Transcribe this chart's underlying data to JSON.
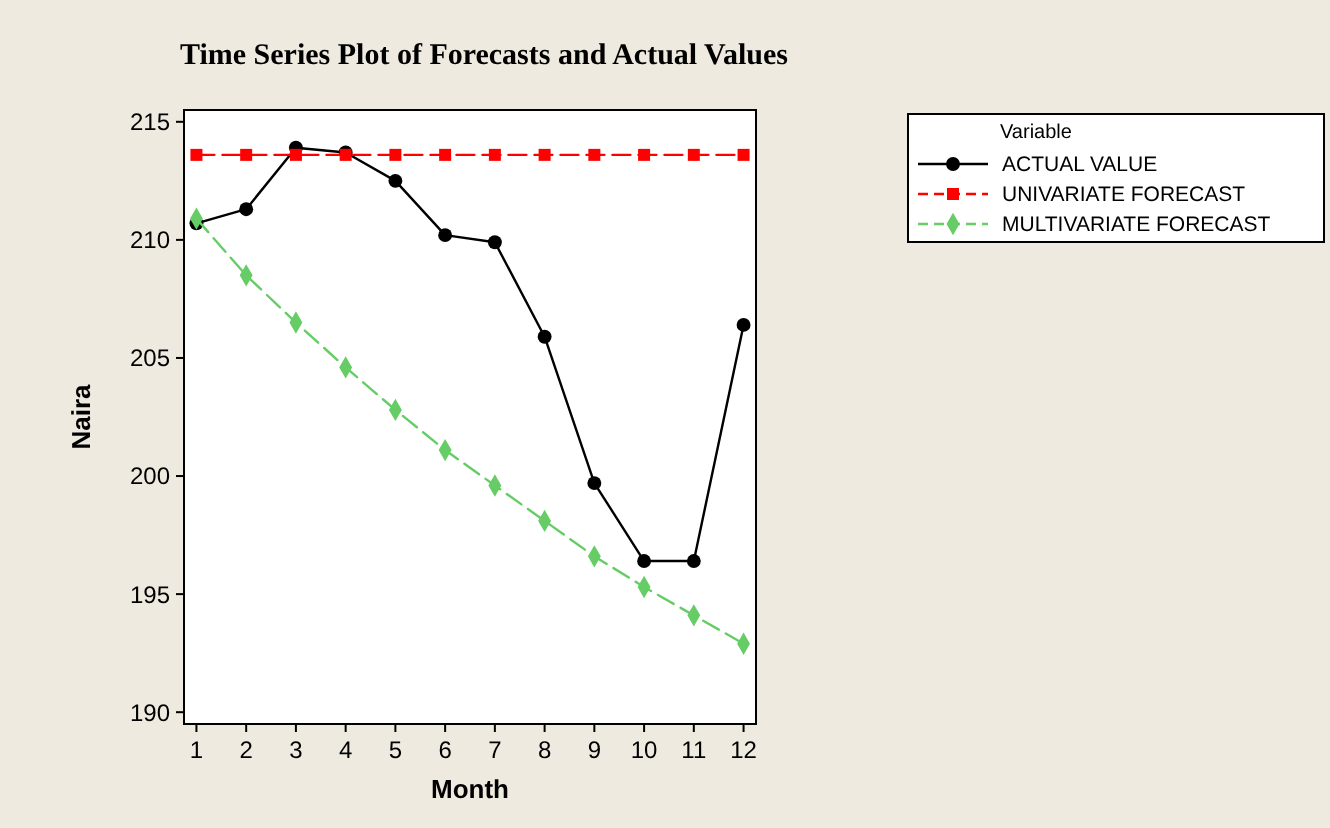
{
  "chart_data": {
    "type": "line",
    "title": "Time Series Plot of Forecasts and Actual Values",
    "xlabel": "Month",
    "ylabel": "Naira",
    "legend_title": "Variable",
    "x": [
      1,
      2,
      3,
      4,
      5,
      6,
      7,
      8,
      9,
      10,
      11,
      12
    ],
    "series": [
      {
        "name": "ACTUAL VALUE",
        "color": "#000000",
        "marker": "circle",
        "line_style": "solid",
        "values": [
          210.7,
          211.3,
          213.9,
          213.7,
          212.5,
          210.2,
          209.9,
          205.9,
          199.7,
          196.4,
          196.4,
          206.4
        ]
      },
      {
        "name": "UNIVARIATE FORECAST",
        "color": "#ff0000",
        "marker": "square",
        "line_style": "dashed",
        "values": [
          213.6,
          213.6,
          213.6,
          213.6,
          213.6,
          213.6,
          213.6,
          213.6,
          213.6,
          213.6,
          213.6,
          213.6
        ]
      },
      {
        "name": "MULTIVARIATE FORECAST",
        "color": "#66cc66",
        "marker": "diamond",
        "line_style": "dashed",
        "values": [
          210.9,
          208.5,
          206.5,
          204.6,
          202.8,
          201.1,
          199.6,
          198.1,
          196.6,
          195.3,
          194.1,
          192.9
        ]
      }
    ],
    "xlim": [
      0.75,
      12.25
    ],
    "xticks": [
      1,
      2,
      3,
      4,
      5,
      6,
      7,
      8,
      9,
      10,
      11,
      12
    ],
    "ylim": [
      189.5,
      215.5
    ],
    "yticks": [
      190,
      195,
      200,
      205,
      210,
      215
    ],
    "grid": false,
    "legend": "top right"
  }
}
